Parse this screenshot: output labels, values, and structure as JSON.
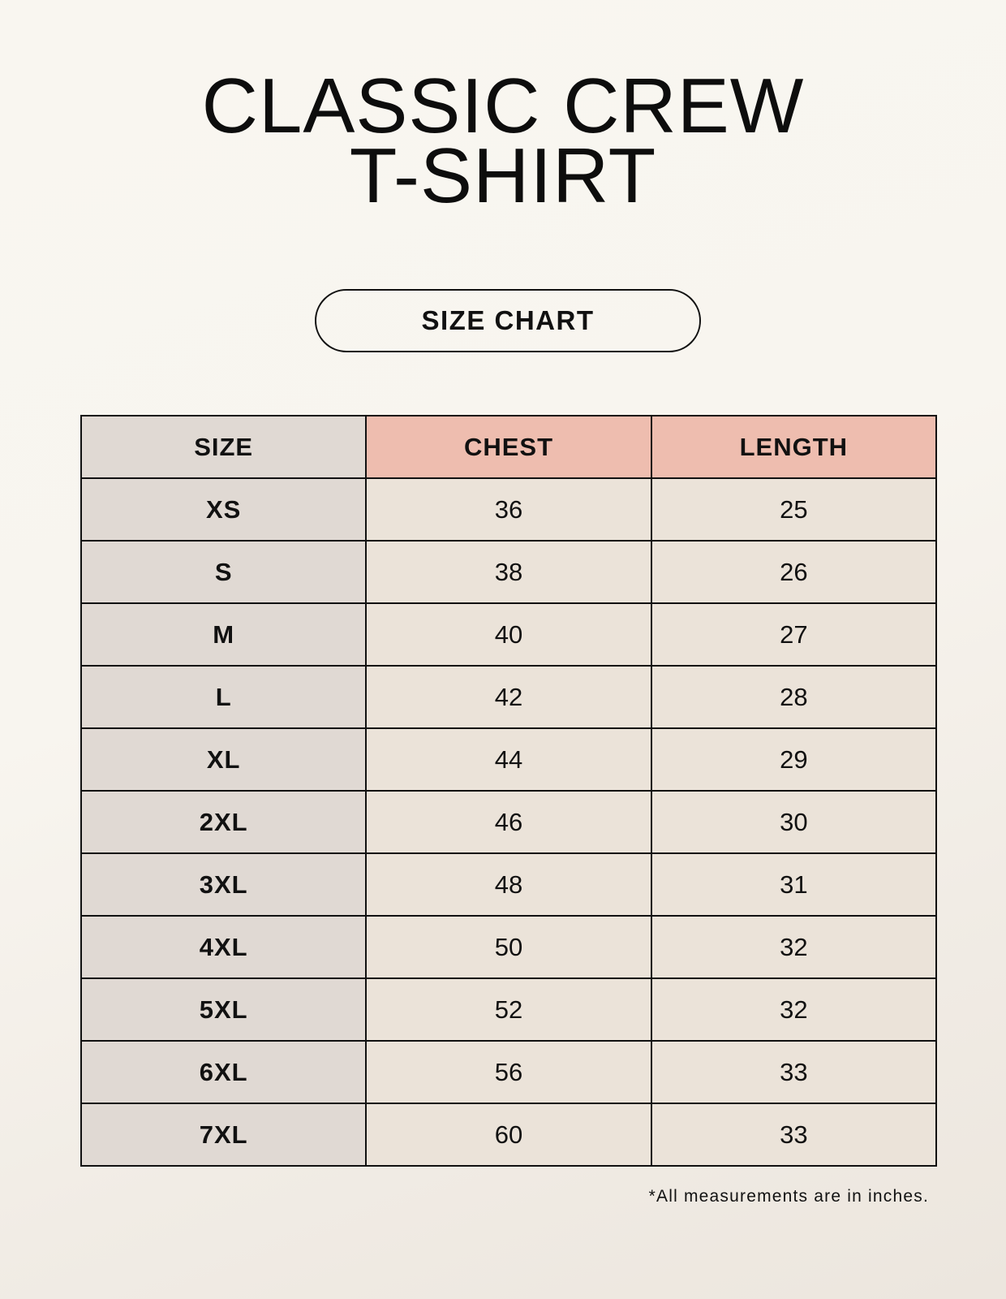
{
  "title": {
    "line1": "CLASSIC CREW",
    "line2": "T-SHIRT"
  },
  "badge": "SIZE CHART",
  "table": {
    "headers": [
      "SIZE",
      "CHEST",
      "LENGTH"
    ],
    "rows": [
      [
        "XS",
        "36",
        "25"
      ],
      [
        "S",
        "38",
        "26"
      ],
      [
        "M",
        "40",
        "27"
      ],
      [
        "L",
        "42",
        "28"
      ],
      [
        "XL",
        "44",
        "29"
      ],
      [
        "2XL",
        "46",
        "30"
      ],
      [
        "3XL",
        "48",
        "31"
      ],
      [
        "4XL",
        "50",
        "32"
      ],
      [
        "5XL",
        "52",
        "32"
      ],
      [
        "6XL",
        "56",
        "33"
      ],
      [
        "7XL",
        "60",
        "33"
      ]
    ]
  },
  "footnote": "*All measurements are in inches.",
  "colors": {
    "header_size": "#e0d9d3",
    "header_measure": "#eebdaf",
    "value_cells": "#ebe3d9"
  }
}
